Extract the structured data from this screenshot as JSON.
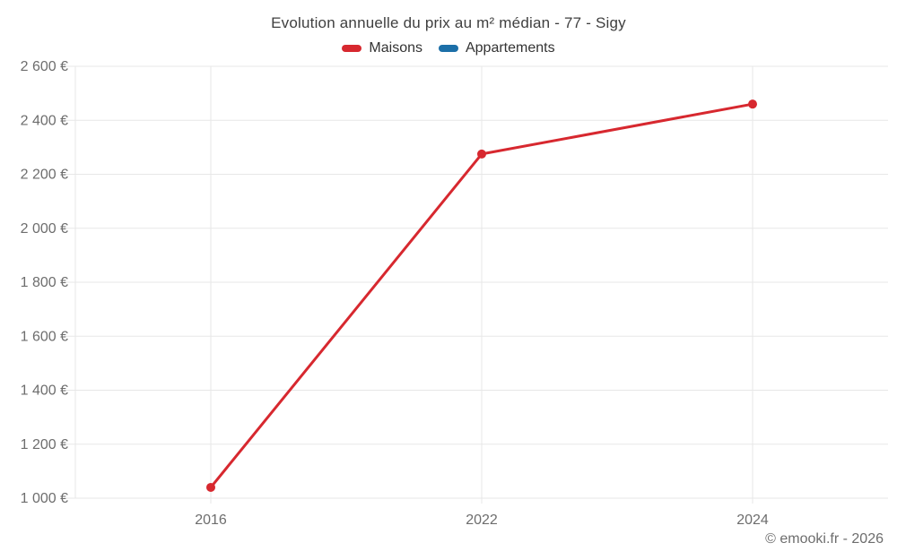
{
  "chart_data": {
    "type": "line",
    "title": "Evolution annuelle du prix au m² médian - 77 - Sigy",
    "categories": [
      "2016",
      "2022",
      "2024"
    ],
    "series": [
      {
        "name": "Maisons",
        "color": "#d7282f",
        "values": [
          1040,
          2275,
          2460
        ]
      },
      {
        "name": "Appartements",
        "color": "#1c6fa8",
        "values": []
      }
    ],
    "ylim": [
      1000,
      2600
    ],
    "y_ticks": [
      {
        "value": 1000,
        "label": "1 000 €"
      },
      {
        "value": 1200,
        "label": "1 200 €"
      },
      {
        "value": 1400,
        "label": "1 400 €"
      },
      {
        "value": 1600,
        "label": "1 600 €"
      },
      {
        "value": 1800,
        "label": "1 800 €"
      },
      {
        "value": 2000,
        "label": "2 000 €"
      },
      {
        "value": 2200,
        "label": "2 200 €"
      },
      {
        "value": 2400,
        "label": "2 400 €"
      },
      {
        "value": 2600,
        "label": "2 600 €"
      }
    ],
    "xlabel": "",
    "ylabel": "",
    "grid": true,
    "legend_position": "top",
    "colors": {
      "grid_line": "#e7e7e7",
      "axis_text": "#6d6d6d",
      "title_text": "#3f3f3f"
    }
  },
  "footer": {
    "credit": "© emooki.fr - 2026"
  }
}
